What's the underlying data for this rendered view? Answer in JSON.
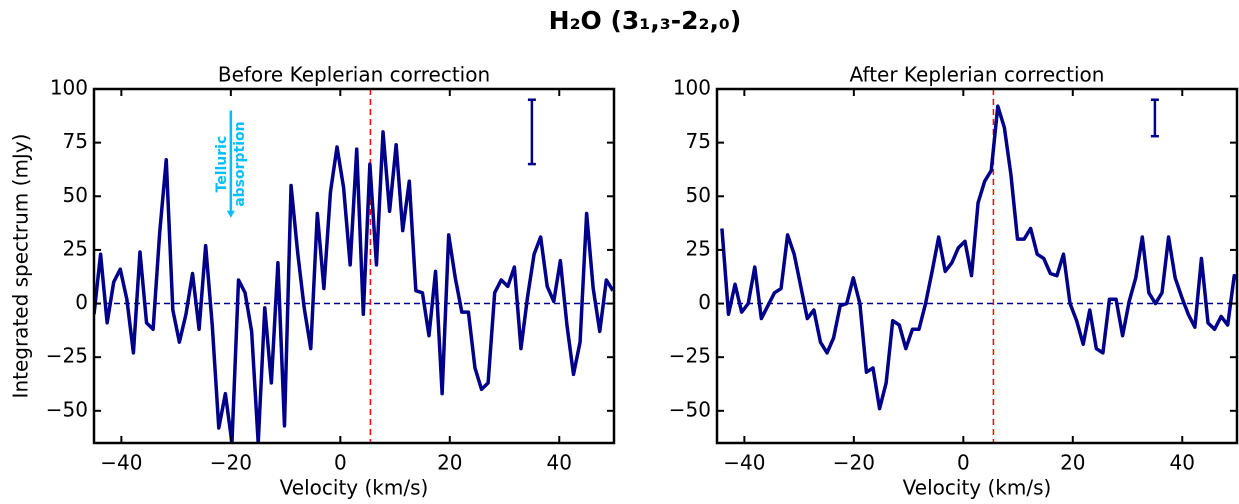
{
  "title": "H₂O (3₁,₃-2₂,₀)",
  "chart_data": [
    {
      "type": "line",
      "title": "Before Keplerian correction",
      "x_label": "Velocity (km/s)",
      "y_label": "Integrated spectrum (mJy)",
      "x": [
        -45,
        -43.8,
        -42.6,
        -41.4,
        -40.2,
        -39,
        -37.8,
        -36.6,
        -35.4,
        -34.2,
        -33,
        -31.8,
        -30.6,
        -29.4,
        -28.2,
        -27,
        -25.8,
        -24.6,
        -23.4,
        -22.2,
        -21,
        -19.8,
        -18.6,
        -17.4,
        -16.2,
        -15,
        -13.8,
        -12.6,
        -11.4,
        -10.2,
        -9,
        -7.8,
        -6.6,
        -5.4,
        -4.2,
        -3,
        -1.8,
        -0.6,
        0.6,
        1.8,
        3,
        4.2,
        5.4,
        6.6,
        7.8,
        9,
        10.2,
        11.4,
        12.6,
        13.8,
        15,
        16.2,
        17.4,
        18.6,
        19.8,
        21,
        22.2,
        23.4,
        24.6,
        25.8,
        27,
        28.2,
        29.4,
        30.6,
        31.8,
        33,
        34.2,
        35.4,
        36.6,
        37.8,
        39,
        40.2,
        41.4,
        42.6,
        43.8,
        45,
        46.2,
        47.4,
        48.6,
        49.8
      ],
      "series": [
        {
          "color": "#00008b",
          "values": [
            -5,
            23,
            -9,
            10,
            16,
            2,
            -23,
            24,
            -9,
            -12,
            33,
            67,
            -3,
            -18,
            -5,
            14,
            -12,
            27,
            -10,
            -58,
            -42,
            -65,
            11,
            5,
            -13,
            -65,
            -2,
            -37,
            19,
            -57,
            55,
            24,
            -2,
            -21,
            42,
            7,
            52,
            73,
            54,
            18,
            72,
            -5,
            65,
            18,
            80,
            43,
            74,
            34,
            57,
            6,
            5,
            -15,
            15,
            -42,
            32,
            12,
            -4,
            -4,
            -30,
            -40,
            -37,
            5,
            11,
            8,
            17,
            -21,
            3,
            23,
            31,
            8,
            1,
            20,
            -10,
            -33,
            -18,
            42,
            7,
            -13,
            11,
            6
          ]
        }
      ],
      "xlim": [
        -45,
        50
      ],
      "ylim": [
        -65,
        100
      ],
      "xticks": [
        {
          "value": -40,
          "label": "−40"
        },
        {
          "value": -20,
          "label": "−20"
        },
        0,
        20,
        40
      ],
      "yticks": [
        {
          "value": -50,
          "label": "−50"
        },
        {
          "value": -25,
          "label": "−25"
        },
        0,
        25,
        50,
        75,
        100
      ],
      "reference_y": 0,
      "reference_y_color": "#00008b",
      "reference_x": 5.5,
      "reference_x_color": "#ff0000",
      "error_bar": {
        "x": 35,
        "low": 65,
        "high": 95
      },
      "annotation": {
        "lines": [
          "Telluric",
          "absorption"
        ],
        "color": "#00bfff",
        "x": -20,
        "y_start": 90,
        "y_end": 40
      }
    },
    {
      "type": "line",
      "title": "After Keplerian correction",
      "x_label": "Velocity (km/s)",
      "x": [
        -44.1,
        -42.9,
        -41.7,
        -40.5,
        -39.3,
        -38.1,
        -36.9,
        -35.7,
        -34.5,
        -33.3,
        -32.1,
        -30.9,
        -29.7,
        -28.5,
        -27.3,
        -26.1,
        -24.9,
        -23.7,
        -22.5,
        -21.3,
        -20.1,
        -18.9,
        -17.7,
        -16.5,
        -15.3,
        -14.1,
        -12.9,
        -11.7,
        -10.5,
        -9.3,
        -8.1,
        -6.9,
        -5.7,
        -4.5,
        -3.3,
        -2.1,
        -0.9,
        0.3,
        1.5,
        2.7,
        3.9,
        5.1,
        6.3,
        7.5,
        8.7,
        9.9,
        11.1,
        12.3,
        13.5,
        14.7,
        15.9,
        17.1,
        18.3,
        19.5,
        20.7,
        21.9,
        23.1,
        24.3,
        25.5,
        26.7,
        27.9,
        29.1,
        30.3,
        31.5,
        32.7,
        33.9,
        35.1,
        36.3,
        37.5,
        38.7,
        39.9,
        41.1,
        42.3,
        43.5,
        44.7,
        45.9,
        47.1,
        48.3,
        49.5,
        50.7
      ],
      "series": [
        {
          "color": "#00008b",
          "values": [
            35,
            -5,
            9,
            -4,
            0,
            17,
            -7,
            -1,
            5,
            7,
            32,
            23,
            8,
            -7,
            -3,
            -18,
            -23,
            -16,
            -1,
            0,
            12,
            0,
            -32,
            -30,
            -49,
            -37,
            -8,
            -10,
            -21,
            -12,
            -12,
            0,
            15,
            31,
            15,
            19,
            26,
            29,
            13,
            47,
            57,
            62,
            92,
            82,
            60,
            30,
            30,
            35,
            23,
            21,
            14,
            13,
            23,
            0,
            -8,
            -19,
            -3,
            -21,
            -23,
            2,
            2,
            -15,
            1,
            12,
            31,
            5,
            0,
            5,
            31,
            12,
            3,
            -5,
            -11,
            21,
            -9,
            -12,
            -6,
            -10,
            13,
            10
          ]
        }
      ],
      "xlim": [
        -45,
        50
      ],
      "ylim": [
        -65,
        100
      ],
      "xticks": [
        {
          "value": -40,
          "label": "−40"
        },
        {
          "value": -20,
          "label": "−20"
        },
        0,
        20,
        40
      ],
      "yticks": [
        {
          "value": -50,
          "label": "−50"
        },
        {
          "value": -25,
          "label": "−25"
        },
        0,
        25,
        50,
        75,
        100
      ],
      "reference_y": 0,
      "reference_y_color": "#00008b",
      "reference_x": 5.5,
      "reference_x_color": "#ff0000",
      "error_bar": {
        "x": 35,
        "low": 78,
        "high": 95
      }
    }
  ]
}
